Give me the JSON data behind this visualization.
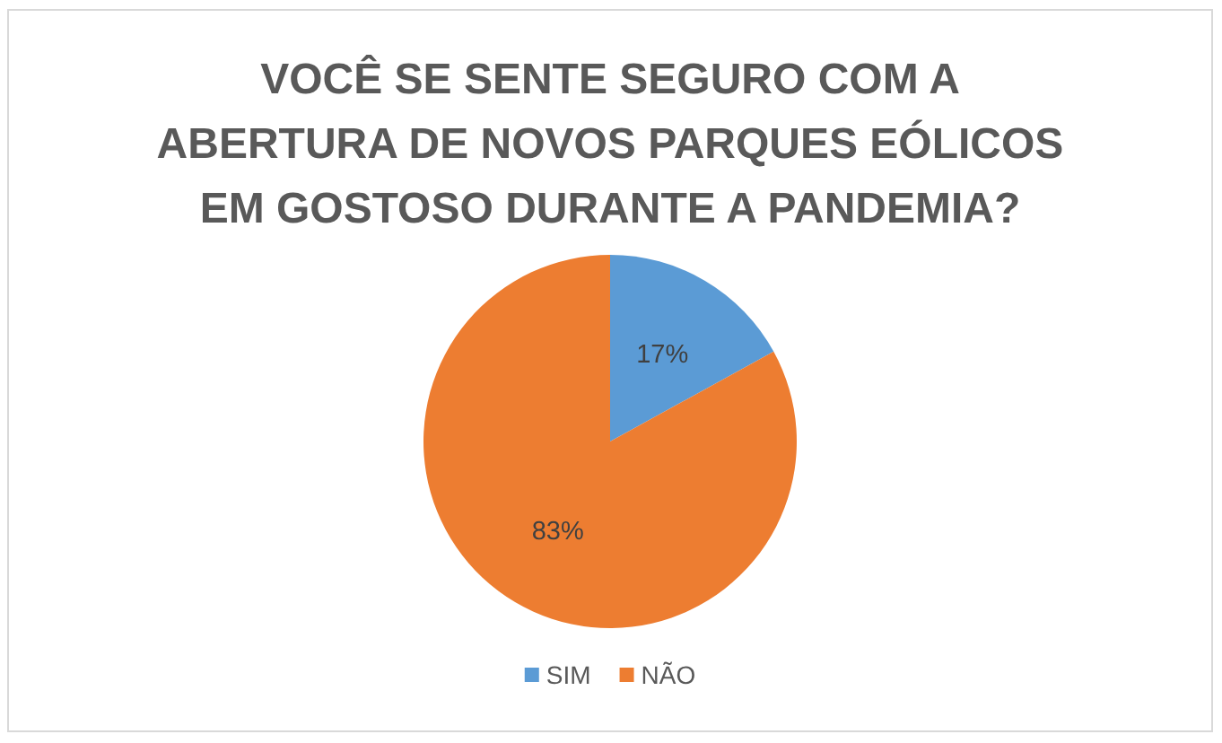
{
  "chart_data": {
    "type": "pie",
    "title": "VOCÊ SE SENTE SEGURO COM A ABERTURA DE NOVOS PARQUES EÓLICOS EM GOSTOSO DURANTE A PANDEMIA?",
    "categories": [
      "SIM",
      "NÃO"
    ],
    "values": [
      17,
      83
    ],
    "colors": [
      "#5b9bd5",
      "#ed7d31"
    ],
    "value_labels": [
      "17%",
      "83%"
    ],
    "legend": "bottom"
  }
}
